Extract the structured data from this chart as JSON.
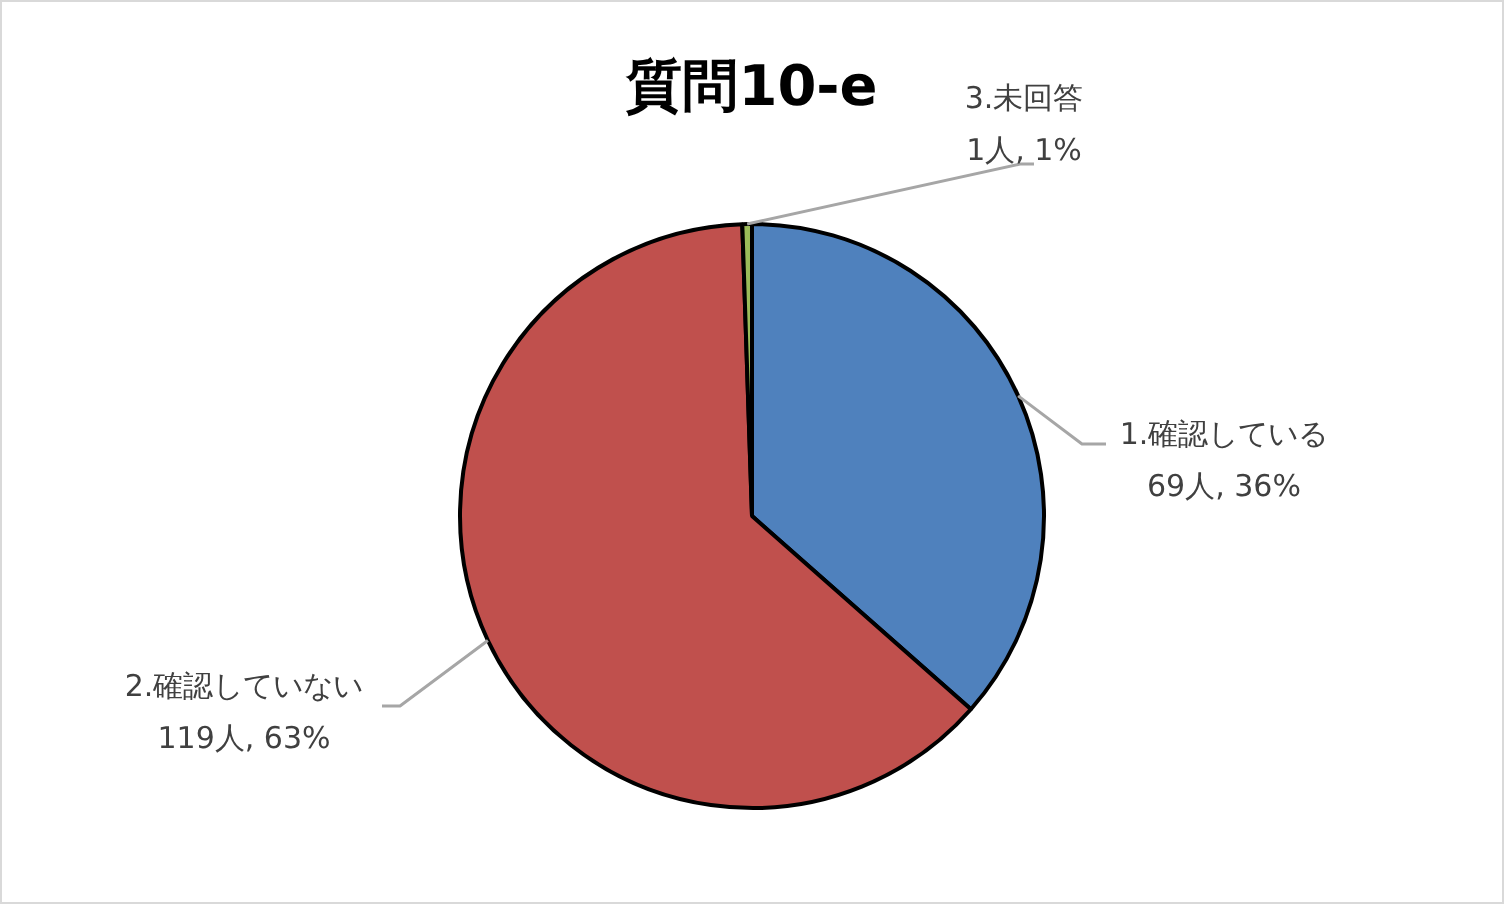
{
  "chart_data": {
    "type": "pie",
    "title": "質問10-e",
    "categories": [
      "1.確認している",
      "2.確認していない",
      "3.未回答"
    ],
    "values": [
      69,
      119,
      1
    ],
    "value_labels": [
      "69人, 36%",
      "119人, 63%",
      "1人, 1%"
    ],
    "colors": [
      "#4f81bd",
      "#c0504d",
      "#9bbb59"
    ]
  }
}
